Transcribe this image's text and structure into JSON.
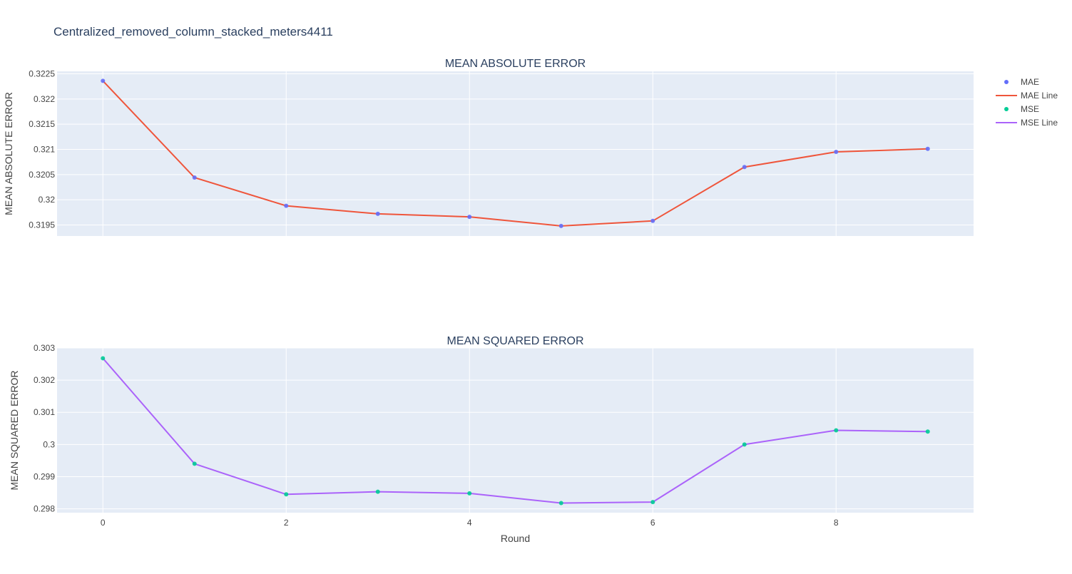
{
  "page": {
    "title": "Centralized_removed_column_stacked_meters4411"
  },
  "colors": {
    "plot_bg": "#E5ECF6",
    "grid": "#ffffff",
    "text": "#444444",
    "title_text": "#2a3f5f",
    "mae_marker": "#636EFA",
    "mae_line": "#EF553B",
    "mse_marker": "#00CC96",
    "mse_line": "#AB63FA"
  },
  "chart_data": [
    {
      "type": "line",
      "title": "MEAN ABSOLUTE ERROR",
      "xlabel": "",
      "ylabel": "MEAN ABSOLUTE ERROR",
      "x": [
        0,
        1,
        2,
        3,
        4,
        5,
        6,
        7,
        8,
        9
      ],
      "xlim": [
        -0.5,
        9.5
      ],
      "xticks": [
        0,
        2,
        4,
        6,
        8
      ],
      "xtick_labels_visible": false,
      "ylim": [
        0.31928,
        0.32255
      ],
      "yticks": [
        0.3195,
        0.32,
        0.3205,
        0.321,
        0.3215,
        0.322,
        0.3225
      ],
      "ytick_labels": [
        "0.3195",
        "0.32",
        "0.3205",
        "0.321",
        "0.3215",
        "0.322",
        "0.3225"
      ],
      "grid": true,
      "series": [
        {
          "name": "MAE",
          "mode": "markers",
          "color": "#636EFA",
          "values": [
            0.32236,
            0.32044,
            0.31988,
            0.31972,
            0.31966,
            0.31948,
            0.31958,
            0.32065,
            0.32095,
            0.32101
          ]
        },
        {
          "name": "MAE Line",
          "mode": "lines",
          "color": "#EF553B",
          "values": [
            0.32236,
            0.32044,
            0.31988,
            0.31972,
            0.31966,
            0.31948,
            0.31958,
            0.32065,
            0.32095,
            0.32101
          ]
        }
      ]
    },
    {
      "type": "line",
      "title": "MEAN SQUARED ERROR",
      "xlabel": "Round",
      "ylabel": "MEAN SQUARED ERROR",
      "x": [
        0,
        1,
        2,
        3,
        4,
        5,
        6,
        7,
        8,
        9
      ],
      "xlim": [
        -0.5,
        9.5
      ],
      "xticks": [
        0,
        2,
        4,
        6,
        8
      ],
      "xtick_labels_visible": true,
      "xtick_labels": [
        "0",
        "2",
        "4",
        "6",
        "8"
      ],
      "ylim": [
        0.29788,
        0.303
      ],
      "yticks": [
        0.298,
        0.299,
        0.3,
        0.301,
        0.302,
        0.303
      ],
      "ytick_labels": [
        "0.298",
        "0.299",
        "0.3",
        "0.301",
        "0.302",
        "0.303"
      ],
      "grid": true,
      "series": [
        {
          "name": "MSE",
          "mode": "markers",
          "color": "#00CC96",
          "values": [
            0.30268,
            0.2994,
            0.29845,
            0.29853,
            0.29848,
            0.29818,
            0.29821,
            0.3,
            0.30044,
            0.3004
          ]
        },
        {
          "name": "MSE Line",
          "mode": "lines",
          "color": "#AB63FA",
          "values": [
            0.30268,
            0.2994,
            0.29845,
            0.29853,
            0.29848,
            0.29818,
            0.29821,
            0.3,
            0.30044,
            0.3004
          ]
        }
      ]
    }
  ],
  "legend": {
    "placement": "top-right",
    "items": [
      {
        "label": "MAE",
        "kind": "marker",
        "color": "#636EFA"
      },
      {
        "label": "MAE Line",
        "kind": "line",
        "color": "#EF553B"
      },
      {
        "label": "MSE",
        "kind": "marker",
        "color": "#00CC96"
      },
      {
        "label": "MSE Line",
        "kind": "line",
        "color": "#AB63FA"
      }
    ]
  }
}
